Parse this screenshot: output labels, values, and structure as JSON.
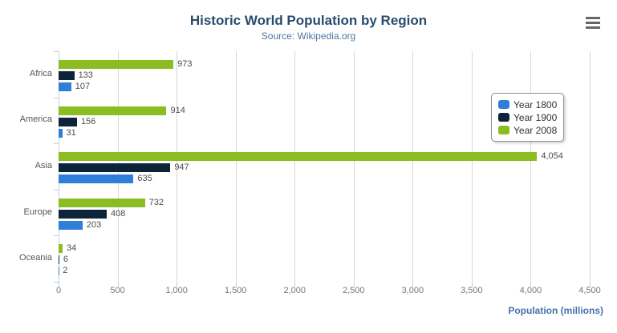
{
  "chart": {
    "title": "Historic World Population by Region",
    "subtitle": "Source: Wikipedia.org"
  },
  "chart_data": {
    "type": "bar",
    "orientation": "horizontal",
    "title": "Historic World Population by Region",
    "subtitle": "Source: Wikipedia.org",
    "categories": [
      "Africa",
      "America",
      "Asia",
      "Europe",
      "Oceania"
    ],
    "series": [
      {
        "name": "Year 1800",
        "color": "#2f7ed8",
        "values": [
          107,
          31,
          635,
          203,
          2
        ]
      },
      {
        "name": "Year 1900",
        "color": "#0d233a",
        "values": [
          133,
          156,
          947,
          408,
          6
        ]
      },
      {
        "name": "Year 2008",
        "color": "#8bbc21",
        "values": [
          973,
          914,
          4054,
          732,
          34
        ]
      }
    ],
    "bar_order_top_to_bottom": [
      "Year 2008",
      "Year 1900",
      "Year 1800"
    ],
    "data_labels": true,
    "xlabel": "Population (millions)",
    "ylabel": "",
    "xlim": [
      0,
      4500
    ],
    "xticks": [
      0,
      500,
      1000,
      1500,
      2000,
      2500,
      3000,
      3500,
      4000,
      4500
    ],
    "xtick_labels": [
      "0",
      "500",
      "1,000",
      "1,500",
      "2,000",
      "2,500",
      "3,000",
      "3,500",
      "4,000",
      "4,500"
    ],
    "grid": true,
    "legend_position": "right"
  },
  "icons": {
    "context_menu": "hamburger-menu"
  },
  "colors": {
    "background": "#ffffff",
    "title": "#274b6d",
    "subtitle": "#4d759e",
    "axis_title": "#4572a7",
    "grid_line": "#d8d8d8",
    "axis_line": "#c0d0e0",
    "tick_label": "#777777",
    "category_label": "#555555",
    "data_label": "#4d4d4d",
    "legend_text": "#333333",
    "menu_icon": "#666666"
  }
}
